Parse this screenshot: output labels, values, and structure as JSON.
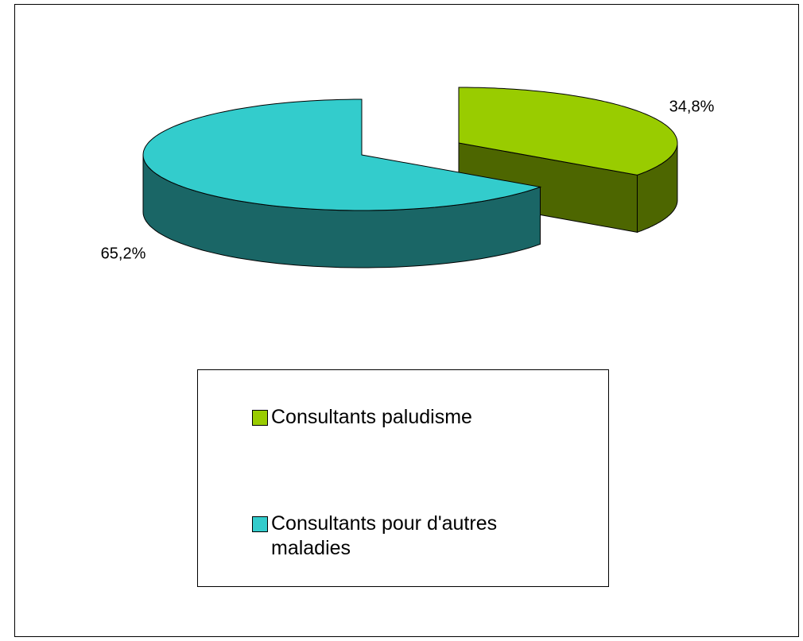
{
  "chart_data": {
    "type": "pie",
    "categories": [
      "Consultants paludisme",
      "Consultants pour d'autres maladies"
    ],
    "values": [
      34.8,
      65.2
    ],
    "value_labels": [
      "34,8%",
      "65,2%"
    ],
    "colors": [
      "#99cc00",
      "#33cccc"
    ],
    "legend": "bottom"
  }
}
